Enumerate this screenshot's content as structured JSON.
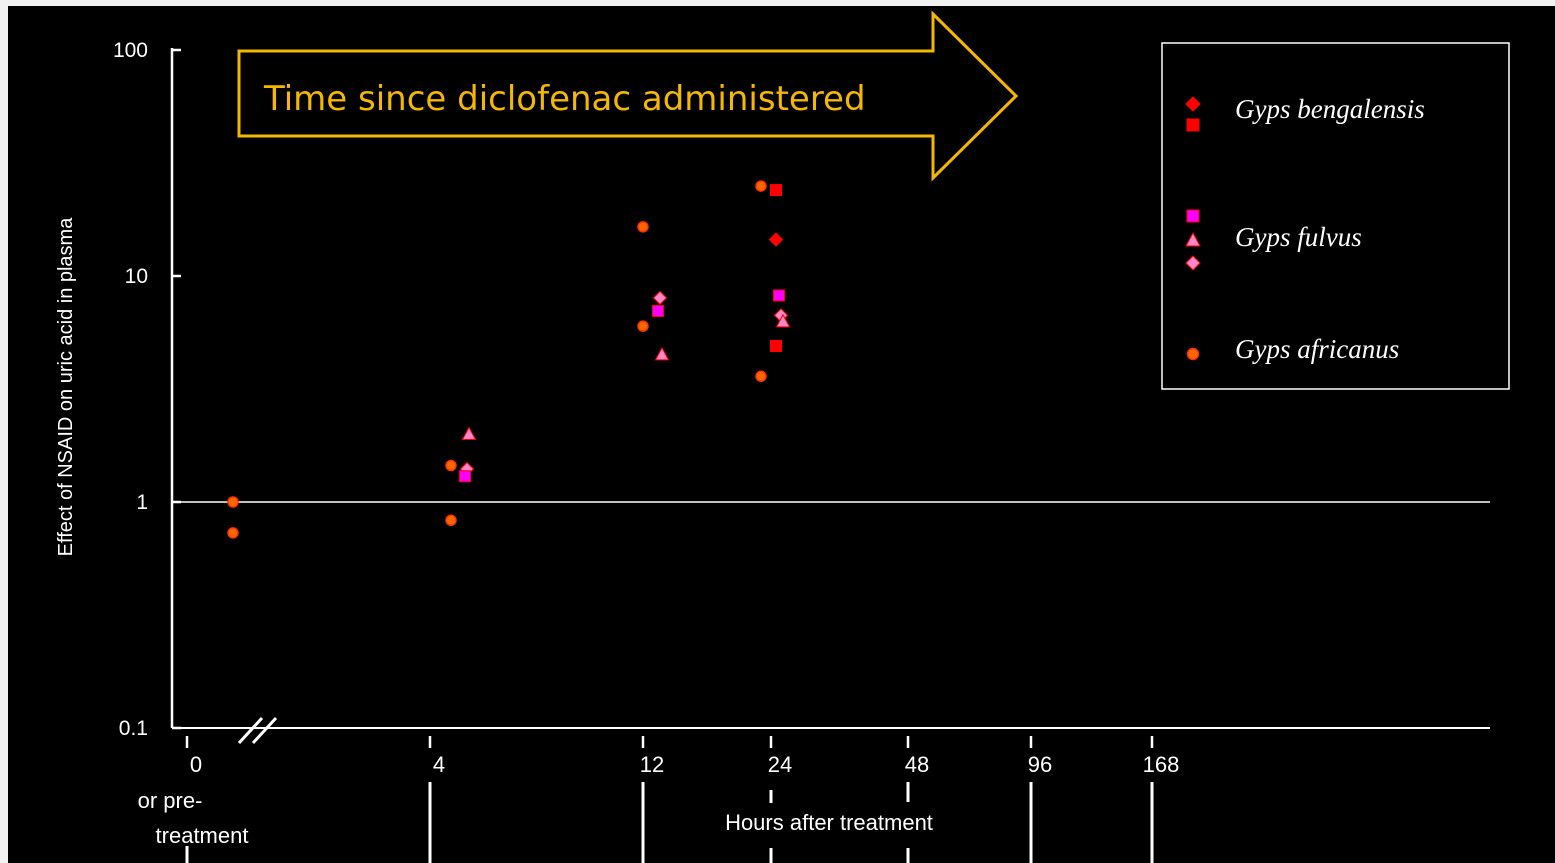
{
  "chart_data": {
    "type": "scatter",
    "title": "",
    "ylabel": "Effect of NSAID on uric acid in plasma",
    "xlabel": "Hours after treatment",
    "x_pre_label": "or pre-\ntreatment",
    "y_scale": "log",
    "ylim": [
      0.1,
      100
    ],
    "y_ticks": [
      {
        "value": 0.1,
        "label": "0.1"
      },
      {
        "value": 1,
        "label": "1"
      },
      {
        "value": 10,
        "label": "10"
      },
      {
        "value": 100,
        "label": "100"
      }
    ],
    "x_ticks": [
      "0",
      "4",
      "12",
      "24",
      "48",
      "96",
      "168"
    ],
    "reference_line": 1,
    "axis_break": "between 0 and 4",
    "legend_position": "top-right",
    "annotation": "Time since diclofenac administered",
    "colors": {
      "background": "#000000",
      "axis": "#ffffff",
      "arrow_border": "#f5b800",
      "arrow_text": "#f5b800",
      "bengalensis": "#ff0000",
      "fulvus": "#ff00ff",
      "fulvus_light": "#ff88cc",
      "africanus": "#ff3300",
      "africanus_fill": "#ff6600"
    },
    "legend": [
      {
        "label": "Gyps bengalensis",
        "markers": [
          "diamond",
          "square"
        ]
      },
      {
        "label": "Gyps fulvus",
        "markers": [
          "square",
          "triangle",
          "diamond"
        ]
      },
      {
        "label": "Gyps africanus",
        "markers": [
          "circle"
        ]
      }
    ],
    "points": [
      {
        "x": "0",
        "y": 1.0,
        "series": "Gyps africanus",
        "marker": "circle"
      },
      {
        "x": "0",
        "y": 0.73,
        "series": "Gyps africanus",
        "marker": "circle"
      },
      {
        "x": "4",
        "y": 1.45,
        "series": "Gyps africanus",
        "marker": "circle"
      },
      {
        "x": "4",
        "y": 0.83,
        "series": "Gyps africanus",
        "marker": "circle"
      },
      {
        "x": "4",
        "y": 2.0,
        "series": "Gyps fulvus",
        "marker": "triangle"
      },
      {
        "x": "4",
        "y": 1.4,
        "series": "Gyps fulvus",
        "marker": "diamond"
      },
      {
        "x": "4",
        "y": 1.3,
        "series": "Gyps fulvus",
        "marker": "square"
      },
      {
        "x": "12",
        "y": 16.5,
        "series": "Gyps africanus",
        "marker": "circle"
      },
      {
        "x": "12",
        "y": 6.0,
        "series": "Gyps africanus",
        "marker": "circle"
      },
      {
        "x": "12",
        "y": 8.0,
        "series": "Gyps fulvus",
        "marker": "diamond"
      },
      {
        "x": "12",
        "y": 7.0,
        "series": "Gyps fulvus",
        "marker": "square"
      },
      {
        "x": "12",
        "y": 4.5,
        "series": "Gyps fulvus",
        "marker": "triangle"
      },
      {
        "x": "24",
        "y": 25.0,
        "series": "Gyps africanus",
        "marker": "circle"
      },
      {
        "x": "24",
        "y": 3.6,
        "series": "Gyps africanus",
        "marker": "circle"
      },
      {
        "x": "24",
        "y": 24.0,
        "series": "Gyps bengalensis",
        "marker": "square"
      },
      {
        "x": "24",
        "y": 14.5,
        "series": "Gyps bengalensis",
        "marker": "diamond"
      },
      {
        "x": "24",
        "y": 4.9,
        "series": "Gyps bengalensis",
        "marker": "square"
      },
      {
        "x": "24",
        "y": 8.2,
        "series": "Gyps fulvus",
        "marker": "square"
      },
      {
        "x": "24",
        "y": 6.7,
        "series": "Gyps fulvus",
        "marker": "diamond"
      },
      {
        "x": "24",
        "y": 6.3,
        "series": "Gyps fulvus",
        "marker": "triangle"
      }
    ]
  }
}
